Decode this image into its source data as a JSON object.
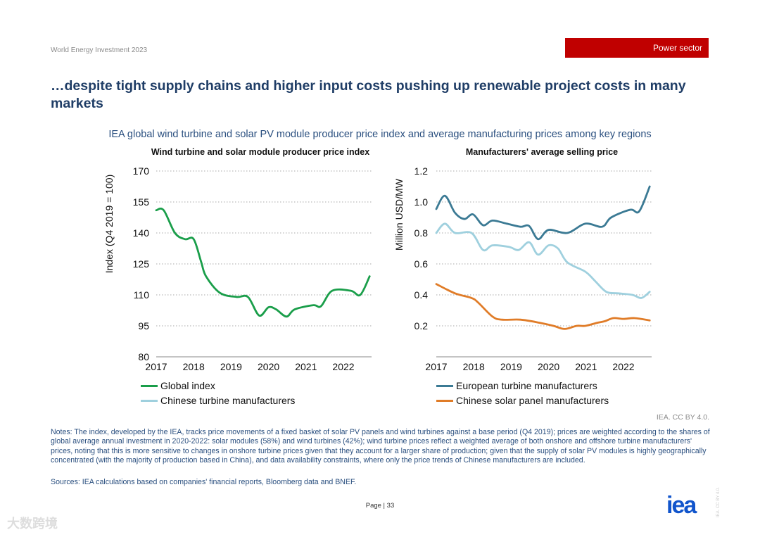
{
  "header": {
    "doc_label": "World Energy Investment 2023",
    "section_tag": "Power sector"
  },
  "title": "…despite tight supply chains and higher input costs pushing up renewable project costs in many markets",
  "subtitle": "IEA global wind turbine and solar PV module producer price index and average manufacturing prices among key regions",
  "colors": {
    "green": "#1a9e4a",
    "dark_blue": "#3b7a94",
    "light_blue": "#9fd0de",
    "orange": "#e07c28",
    "red_tag": "#c00000"
  },
  "chart_data": [
    {
      "type": "line",
      "title": "Wind turbine and solar module producer price index",
      "ylabel": "Index (Q4 2019 = 100)",
      "xlabel": "",
      "ylim": [
        80,
        170
      ],
      "yticks": [
        "80",
        "95",
        "110",
        "125",
        "140",
        "155",
        "170"
      ],
      "xlim": [
        2017,
        2022.85
      ],
      "xticks": [
        "2017",
        "2018",
        "2019",
        "2020",
        "2021",
        "2022"
      ],
      "grid": true,
      "legend": "bottom",
      "series": [
        {
          "name": "Global index",
          "color": "#1a9e4a",
          "x": [
            2017.0,
            2017.2,
            2017.5,
            2017.77,
            2018.0,
            2018.2,
            2018.33,
            2018.7,
            2019.15,
            2019.45,
            2019.75,
            2020.0,
            2020.2,
            2020.48,
            2020.7,
            2021.2,
            2021.4,
            2021.7,
            2022.2,
            2022.45,
            2022.7
          ],
          "y": [
            151,
            151,
            140,
            137,
            137,
            126,
            119,
            111,
            109,
            109,
            100,
            104,
            103,
            99.5,
            103,
            105,
            104.5,
            112,
            112,
            110,
            119
          ]
        }
      ]
    },
    {
      "type": "line",
      "title": "Manufacturers' average selling price",
      "ylabel": "Million USD/MW",
      "xlabel": "",
      "ylim": [
        0,
        1.2
      ],
      "yticks": [
        "0.2",
        "0.4",
        "0.6",
        "0.8",
        "1.0",
        "1.2"
      ],
      "xlim": [
        2017,
        2022.85
      ],
      "xticks": [
        "2017",
        "2018",
        "2019",
        "2020",
        "2021",
        "2022"
      ],
      "grid": true,
      "legend": "bottom",
      "series": [
        {
          "name": "European turbine manufacturers",
          "color": "#3b7a94",
          "x": [
            2017.0,
            2017.23,
            2017.5,
            2017.75,
            2017.98,
            2018.25,
            2018.5,
            2018.88,
            2019.25,
            2019.48,
            2019.72,
            2020.0,
            2020.5,
            2020.98,
            2021.43,
            2021.67,
            2022.18,
            2022.42,
            2022.7
          ],
          "y": [
            0.955,
            1.04,
            0.93,
            0.89,
            0.92,
            0.85,
            0.88,
            0.86,
            0.84,
            0.845,
            0.76,
            0.82,
            0.8,
            0.86,
            0.84,
            0.9,
            0.95,
            0.94,
            1.1
          ]
        },
        {
          "name": "Chinese turbine manufacturers",
          "color": "#9fd0de",
          "x": [
            2017.0,
            2017.23,
            2017.5,
            2017.94,
            2018.25,
            2018.5,
            2018.94,
            2019.2,
            2019.48,
            2019.72,
            2020.0,
            2020.25,
            2020.5,
            2020.98,
            2021.24,
            2021.54,
            2021.86,
            2022.24,
            2022.48,
            2022.7
          ],
          "y": [
            0.8,
            0.86,
            0.8,
            0.8,
            0.69,
            0.72,
            0.71,
            0.69,
            0.74,
            0.66,
            0.72,
            0.7,
            0.61,
            0.55,
            0.49,
            0.42,
            0.41,
            0.4,
            0.38,
            0.42
          ]
        },
        {
          "name": "Chinese solar panel manufacturers",
          "color": "#e07c28",
          "x": [
            2017.0,
            2017.5,
            2017.94,
            2018.12,
            2018.5,
            2018.75,
            2019.25,
            2019.76,
            2020.13,
            2020.43,
            2020.75,
            2020.98,
            2021.3,
            2021.5,
            2021.73,
            2022.0,
            2022.3,
            2022.7
          ],
          "y": [
            0.47,
            0.41,
            0.38,
            0.35,
            0.26,
            0.24,
            0.24,
            0.22,
            0.2,
            0.18,
            0.2,
            0.2,
            0.22,
            0.23,
            0.25,
            0.245,
            0.25,
            0.235
          ]
        }
      ]
    }
  ],
  "credit": "IEA. CC BY 4.0.",
  "notes": "Notes: The index, developed by the IEA, tracks price movements of a fixed basket of solar PV panels and wind turbines against a base period (Q4 2019); prices are weighted according to the shares of global average annual investment in 2020-2022: solar modules (58%) and wind turbines (42%); wind turbine prices reflect a weighted average of both onshore and offshore turbine manufacturers' prices, noting that this is more sensitive to changes in onshore turbine prices given that they account for a larger share of production; given that the supply of solar PV modules is highly geographically concentrated (with the majority of production based in China), and data availability constraints, where only the price trends of Chinese manufacturers are included.",
  "sources": "Sources: IEA calculations based on companies' financial reports, Bloomberg data and BNEF.",
  "footer": {
    "page": "Page | 33",
    "logo": "iea",
    "side_license": "IEA. CC BY 4.0.",
    "watermark": "大数跨境"
  }
}
